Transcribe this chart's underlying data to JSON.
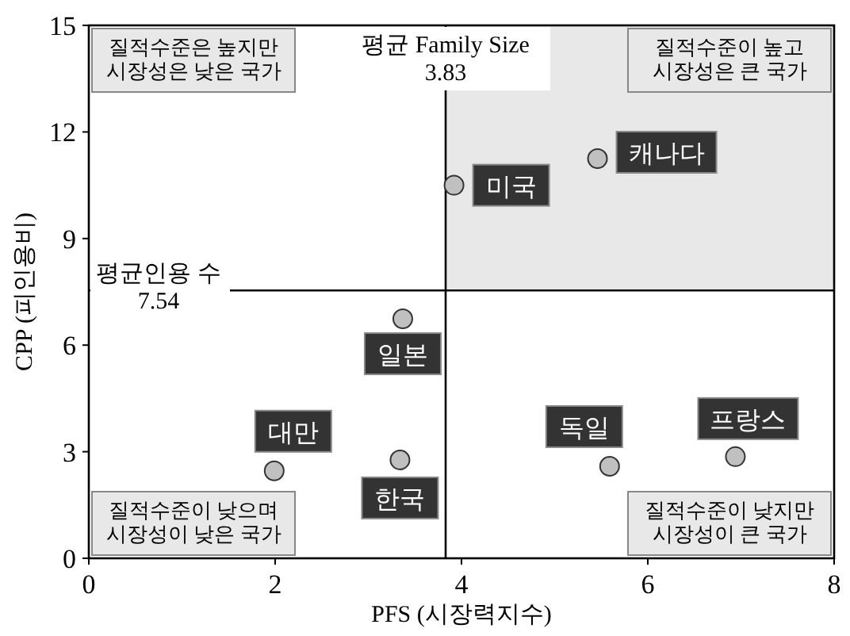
{
  "chart_data": {
    "type": "scatter",
    "xlabel": "PFS (시장력지수)",
    "ylabel": "CPP (피인용비)",
    "x": [
      3.92,
      5.46,
      3.37,
      3.34,
      1.99,
      5.59,
      6.94
    ],
    "series": [
      {
        "color": "#c0c0c0",
        "values": [
          10.5,
          11.25,
          6.74,
          2.77,
          2.46,
          2.59,
          2.86
        ]
      }
    ],
    "xlim": [
      0,
      8
    ],
    "xticks": [
      0,
      2,
      4,
      6,
      8
    ],
    "ylim": [
      0,
      15
    ],
    "yticks": [
      0,
      3,
      6,
      9,
      12,
      15
    ],
    "grid": false,
    "marker": "circle",
    "ref_lines": [
      {
        "axis": "x",
        "value": 3.83,
        "label": "평균 Family Size\n3.83"
      },
      {
        "axis": "y",
        "value": 7.54,
        "label": "평균인용 수\n7.54"
      }
    ],
    "bands": [
      {
        "axis": "x",
        "from": 3.83,
        "to": 8,
        "color": "#e8e8e8"
      }
    ],
    "annotations": [
      {
        "text": "미국",
        "x": 3.92,
        "y": 10.5
      },
      {
        "text": "캐나다",
        "x": 5.46,
        "y": 11.25
      },
      {
        "text": "일본",
        "x": 3.37,
        "y": 6.74
      },
      {
        "text": "한국",
        "x": 3.34,
        "y": 2.77
      },
      {
        "text": "대만",
        "x": 1.99,
        "y": 2.46
      },
      {
        "text": "독일",
        "x": 5.59,
        "y": 2.59
      },
      {
        "text": "프랑스",
        "x": 6.94,
        "y": 2.86
      },
      "질적수준은 높지만\n시장성은 낮은 국가",
      "질적수준이 높고\n시장성은 큰 국가",
      "질적수준이 낮으며\n시장성이 낮은 국가",
      "질적수준이 낮지만\n시장성이 큰 국가"
    ]
  }
}
